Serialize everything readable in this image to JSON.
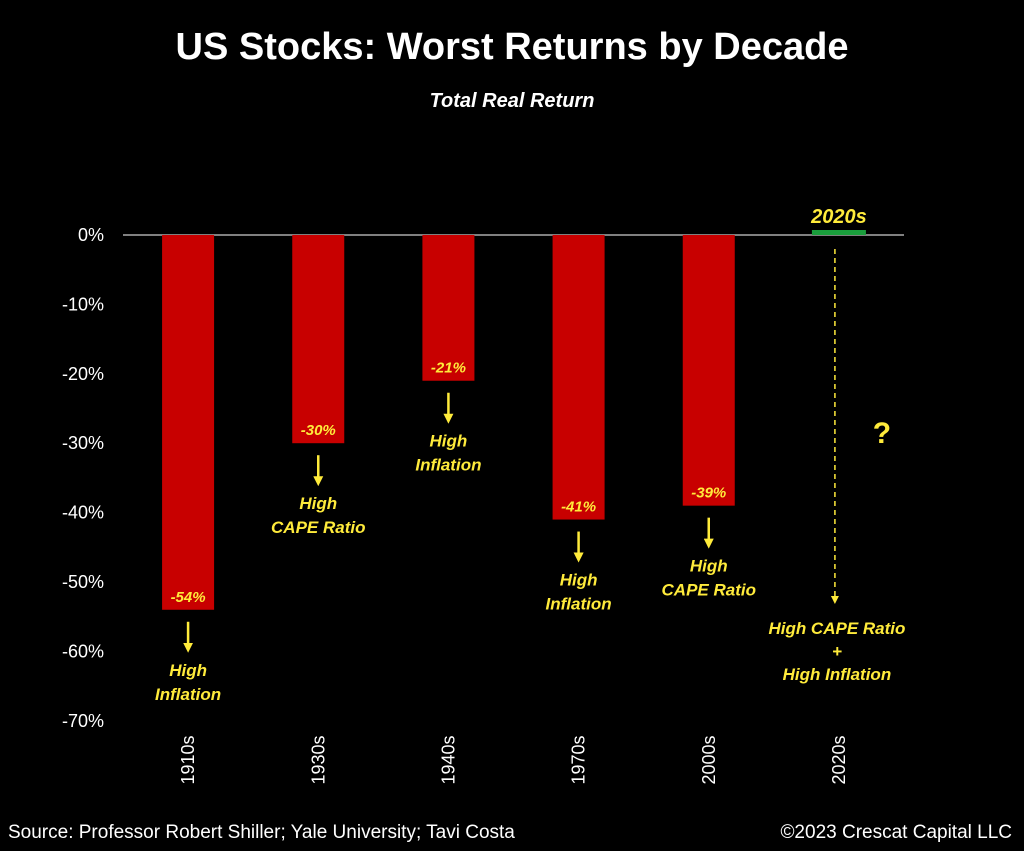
{
  "chart_data": {
    "type": "bar",
    "title": "US Stocks: Worst Returns by Decade",
    "subtitle": "Total Real Return",
    "categories": [
      "1910s",
      "1930s",
      "1940s",
      "1970s",
      "2000s",
      "2020s"
    ],
    "values": [
      -54,
      -30,
      -21,
      -41,
      -39,
      null
    ],
    "value_labels": [
      "-54%",
      "-30%",
      "-21%",
      "-41%",
      "-39%",
      ""
    ],
    "annotations": [
      [
        "High",
        "Inflation"
      ],
      [
        "High",
        "CAPE Ratio"
      ],
      [
        "High",
        "Inflation"
      ],
      [
        "High",
        "Inflation"
      ],
      [
        "High",
        "CAPE Ratio"
      ],
      [
        "High CAPE Ratio",
        "+",
        "High Inflation"
      ]
    ],
    "highlight_label": "2020s",
    "question_mark": "?",
    "yticks": [
      0,
      -10,
      -20,
      -30,
      -40,
      -50,
      -60,
      -70
    ],
    "ytick_labels": [
      "0%",
      "-10%",
      "-20%",
      "-30%",
      "-40%",
      "-50%",
      "-60%",
      "-70%"
    ],
    "ylim": [
      -70,
      0
    ],
    "grid": false,
    "colors": {
      "bar": "#c80000",
      "highlight": "#1a9e3c",
      "annotation": "#ffeb3b",
      "axis": "#ffffff"
    }
  },
  "footer": {
    "source": "Source: Professor Robert Shiller; Yale University; Tavi Costa",
    "copyright": "©2023 Crescat Capital LLC"
  }
}
